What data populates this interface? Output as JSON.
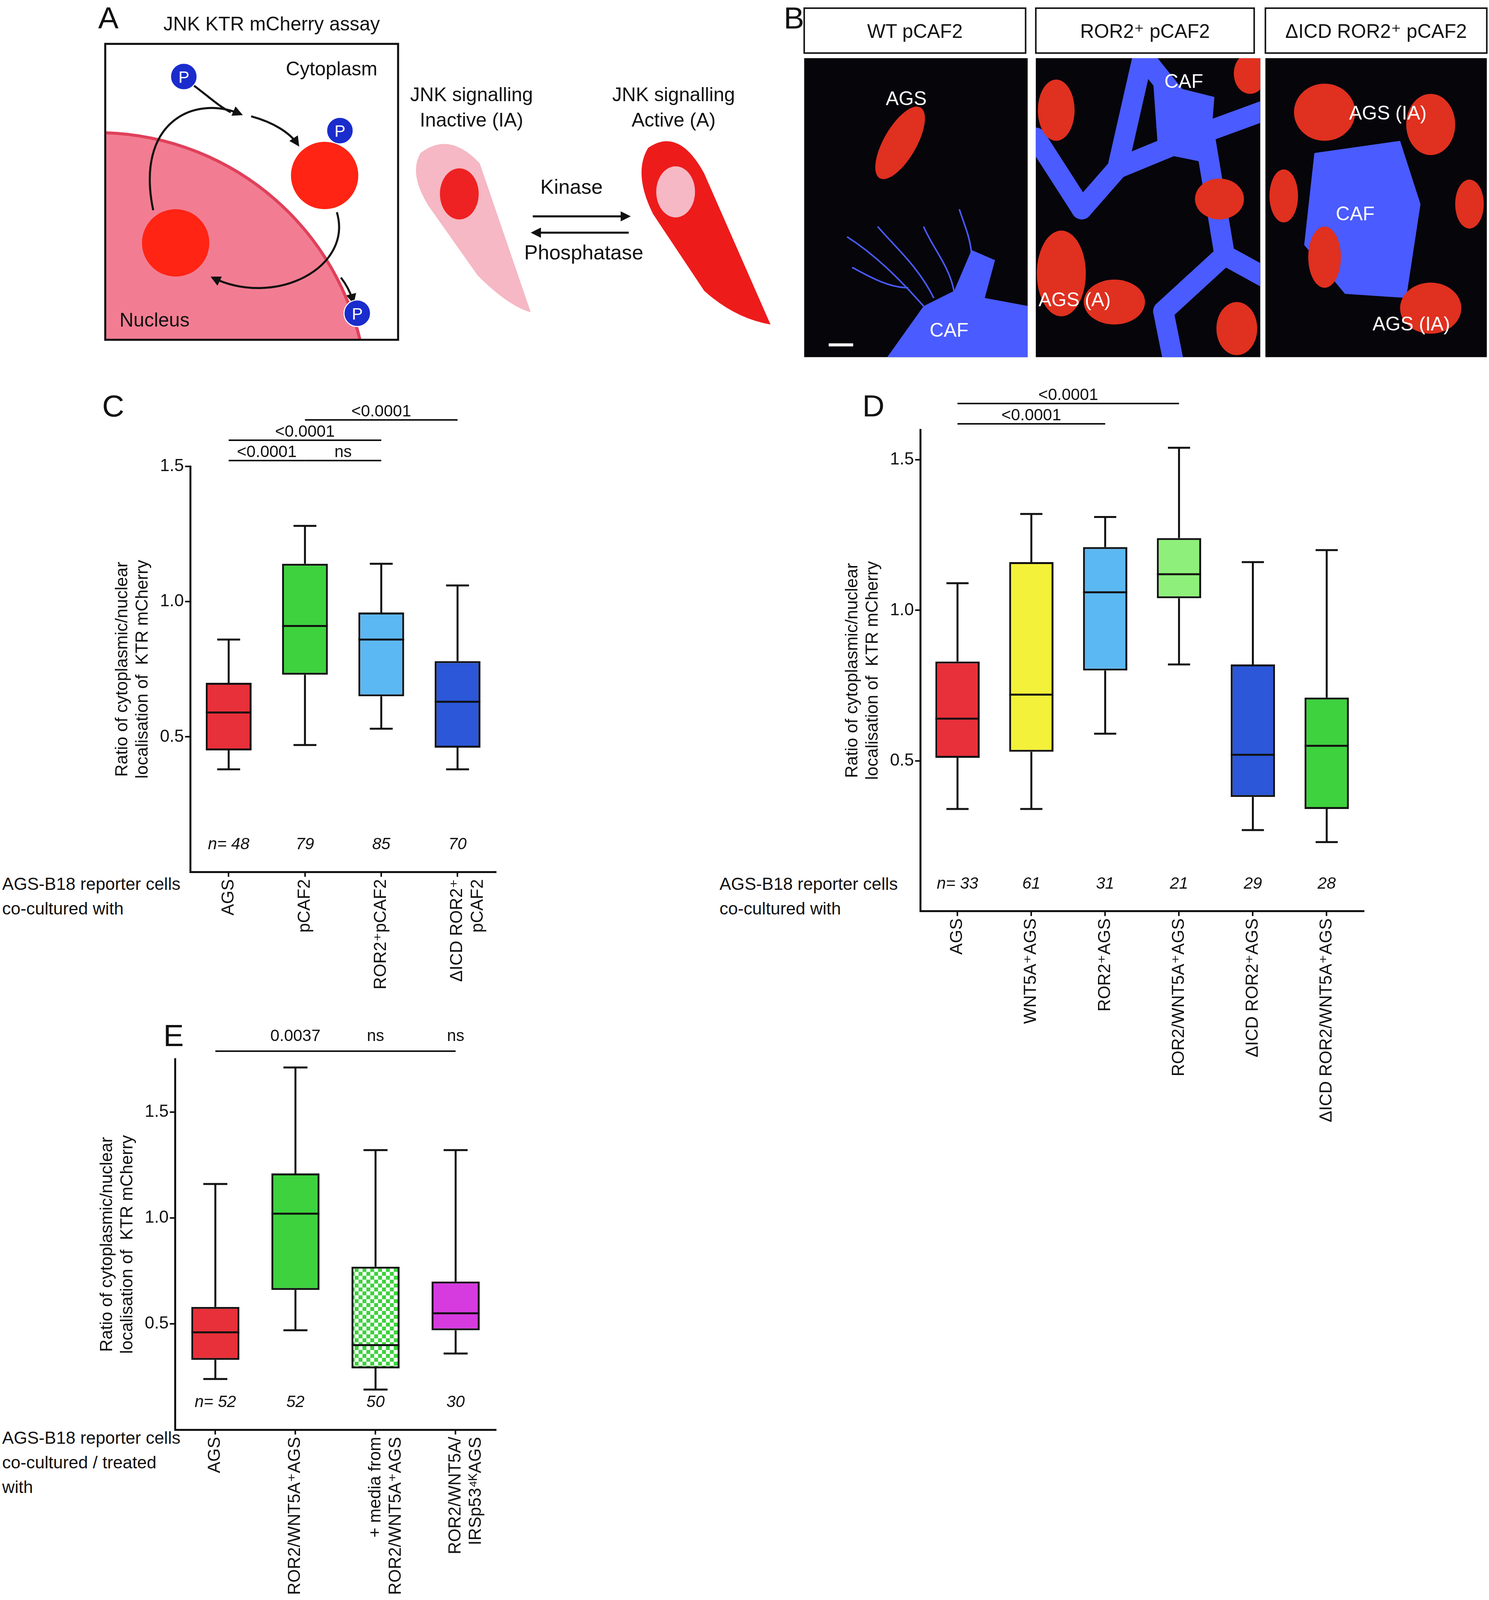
{
  "panels": {
    "A": {
      "letter": "A",
      "title": "JNK KTR mCherry assay",
      "cytoplasm": "Cytoplasm",
      "nucleus": "Nucleus",
      "phospho": "P",
      "inactive": [
        "JNK signalling",
        "Inactive (IA)"
      ],
      "active": [
        "JNK signalling",
        "Active (A)"
      ],
      "kinase": "Kinase",
      "phosphatase": "Phosphatase"
    },
    "B": {
      "letter": "B",
      "images": [
        {
          "header": "WT pCAF2",
          "labels": [
            "AGS",
            "CAF"
          ]
        },
        {
          "header": "ROR2⁺ pCAF2",
          "labels": [
            "CAF",
            "AGS (A)"
          ]
        },
        {
          "header": "ΔICD ROR2⁺ pCAF2",
          "labels": [
            "AGS (IA)",
            "CAF",
            "AGS (IA)"
          ]
        }
      ]
    }
  },
  "chart_data": [
    {
      "panel": "C",
      "type": "box",
      "y_label": [
        "Ratio of cytoplasmic/nuclear",
        "localisation of  KTR mCherry"
      ],
      "x_label": [
        "AGS-B18 reporter cells",
        "co-cultured with"
      ],
      "ylim": [
        0,
        1.5
      ],
      "yticks": [
        0.5,
        {
          "value": 1,
          "label": "1.0"
        },
        1.5
      ],
      "grid": false,
      "n_prefix": "n= ",
      "boxes": [
        {
          "category": "AGS",
          "color": "#e8303a",
          "low": 0.38,
          "q1": 0.45,
          "median": 0.59,
          "q3": 0.7,
          "high": 0.86,
          "n": 48
        },
        {
          "category": "pCAF2",
          "color": "#3ed23e",
          "low": 0.47,
          "q1": 0.73,
          "median": 0.91,
          "q3": 1.14,
          "high": 1.28,
          "n": 79
        },
        {
          "category": "ROR2⁺pCAF2",
          "color": "#5cb8f2",
          "low": 0.53,
          "q1": 0.65,
          "median": 0.86,
          "q3": 0.96,
          "high": 1.14,
          "n": 85
        },
        {
          "category": [
            "ΔICD ROR2⁺",
            "pCAF2"
          ],
          "color": "#2b57d8",
          "low": 0.38,
          "q1": 0.46,
          "median": 0.63,
          "q3": 0.78,
          "high": 1.06,
          "n": 70
        }
      ],
      "brackets": [
        {
          "from": "AGS",
          "to": "pCAF2",
          "text": "<0.0001"
        },
        {
          "from": "pCAF2",
          "to": "ROR2⁺pCAF2",
          "text": "ns"
        },
        {
          "from": "AGS",
          "to": "ROR2⁺pCAF2",
          "text": "<0.0001"
        },
        {
          "from": "pCAF2",
          "to": "ΔICD ROR2⁺ pCAF2",
          "text": "<0.0001"
        }
      ]
    },
    {
      "panel": "D",
      "type": "box",
      "y_label": [
        "Ratio of cytoplasmic/nuclear",
        "localisation of  KTR mCherry"
      ],
      "x_label": [
        "AGS-B18 reporter cells",
        "co-cultured with"
      ],
      "ylim": [
        0,
        1.6
      ],
      "yticks": [
        0.5,
        {
          "value": 1,
          "label": "1.0"
        },
        1.5
      ],
      "grid": false,
      "n_prefix": "n= ",
      "boxes": [
        {
          "category": "AGS",
          "color": "#e8303a",
          "low": 0.34,
          "q1": 0.51,
          "median": 0.64,
          "q3": 0.83,
          "high": 1.09,
          "n": 33
        },
        {
          "category": "WNT5A⁺AGS",
          "color": "#f4f13a",
          "low": 0.34,
          "q1": 0.53,
          "median": 0.72,
          "q3": 1.16,
          "high": 1.32,
          "n": 61
        },
        {
          "category": "ROR2⁺AGS",
          "color": "#5cb8f2",
          "low": 0.59,
          "q1": 0.8,
          "median": 1.06,
          "q3": 1.21,
          "high": 1.31,
          "n": 31
        },
        {
          "category": "ROR2/WNT5A⁺AGS",
          "color": "#8ef07a",
          "low": 0.82,
          "q1": 1.04,
          "median": 1.12,
          "q3": 1.24,
          "high": 1.54,
          "n": 21
        },
        {
          "category": "ΔICD ROR2⁺AGS",
          "color": "#2b57d8",
          "low": 0.27,
          "q1": 0.38,
          "median": 0.52,
          "q3": 0.82,
          "high": 1.16,
          "n": 29
        },
        {
          "category": "ΔICD ROR2/WNT5A⁺AGS",
          "color": "#3ed23e",
          "low": 0.23,
          "q1": 0.34,
          "median": 0.55,
          "q3": 0.71,
          "high": 1.2,
          "n": 28
        }
      ],
      "brackets": [
        {
          "from": "AGS",
          "to": "ROR2⁺AGS",
          "text": "<0.0001"
        },
        {
          "from": "AGS",
          "to": "ROR2/WNT5A⁺AGS",
          "text": "<0.0001"
        }
      ]
    },
    {
      "panel": "E",
      "type": "box",
      "y_label": [
        "Ratio of cytoplasmic/nuclear",
        "localisation of  KTR mCherry"
      ],
      "x_label": [
        "AGS-B18 reporter cells",
        "co-cultured / treated",
        "with"
      ],
      "ylim": [
        0,
        1.75
      ],
      "yticks": [
        0.5,
        {
          "value": 1,
          "label": "1.0"
        },
        1.5
      ],
      "grid": false,
      "n_prefix": "n= ",
      "boxes": [
        {
          "category": "AGS",
          "color": "#e8303a",
          "low": 0.24,
          "q1": 0.33,
          "median": 0.46,
          "q3": 0.58,
          "high": 1.16,
          "n": 52
        },
        {
          "category": "ROR2/WNT5A⁺AGS",
          "color": "#3ed23e",
          "low": 0.47,
          "q1": 0.66,
          "median": 1.02,
          "q3": 1.21,
          "high": 1.71,
          "n": 52
        },
        {
          "category": [
            "+ media from",
            "ROR2/WNT5A⁺AGS"
          ],
          "color": "#3ed23e",
          "marker": "checkered",
          "low": 0.19,
          "q1": 0.29,
          "median": 0.4,
          "q3": 0.77,
          "high": 1.32,
          "n": 50
        },
        {
          "category": [
            "ROR2/WNT5A/",
            "IRSp53⁴ᴷAGS"
          ],
          "color": "#d63be0",
          "low": 0.36,
          "q1": 0.47,
          "median": 0.55,
          "q3": 0.7,
          "high": 1.32,
          "n": 30
        }
      ],
      "reference": {
        "category": "AGS",
        "labels": [
          {
            "category": "ROR2/WNT5A⁺AGS",
            "text": "0.0037"
          },
          {
            "category": "+ media from ROR2/WNT5A⁺AGS",
            "text": "ns"
          },
          {
            "category": "ROR2/WNT5A/ IRSp53⁴ᴷAGS",
            "text": "ns"
          }
        ]
      }
    }
  ]
}
